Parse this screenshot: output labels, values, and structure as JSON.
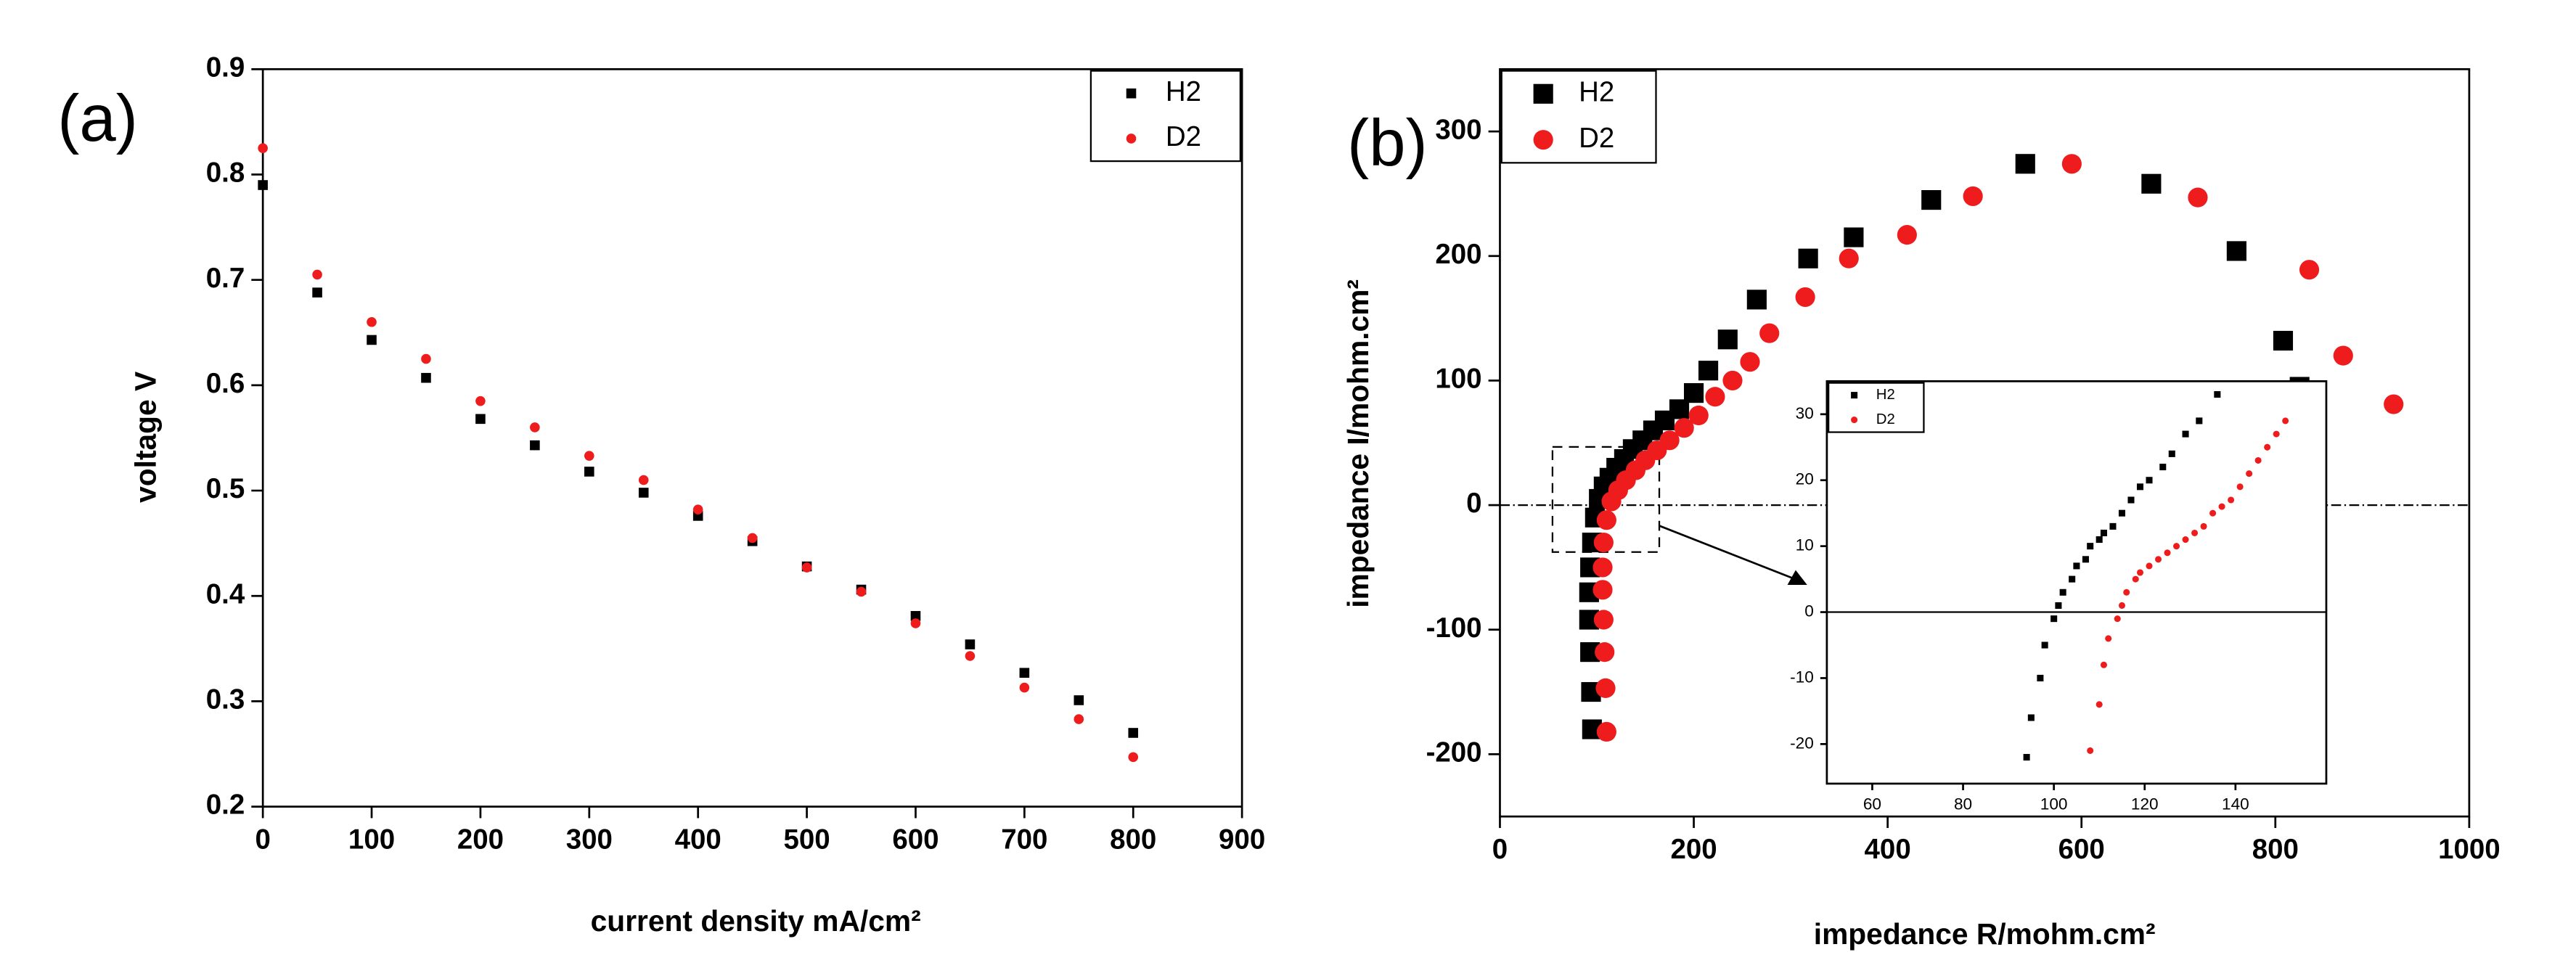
{
  "chart_data": [
    {
      "type": "scatter",
      "label": "(a)",
      "x_label": "current density mA/cm²",
      "y_label": "voltage V",
      "xlim": [
        0,
        900
      ],
      "xticks": [
        0,
        100,
        200,
        300,
        400,
        500,
        600,
        700,
        800,
        900
      ],
      "ylim": [
        0.2,
        0.9
      ],
      "yticks": [
        0.2,
        0.3,
        0.4,
        0.5,
        0.6,
        0.7,
        0.8,
        0.9
      ],
      "legend": "top-right",
      "series": [
        {
          "name": "H2",
          "color": "#000000",
          "marker": "square",
          "x": [
            0,
            50,
            100,
            150,
            200,
            250,
            300,
            350,
            400,
            450,
            500,
            550,
            600,
            650,
            700,
            750,
            800
          ],
          "values": [
            0.79,
            0.688,
            0.643,
            0.607,
            0.568,
            0.543,
            0.518,
            0.498,
            0.476,
            0.452,
            0.428,
            0.406,
            0.381,
            0.354,
            0.327,
            0.301,
            0.27
          ]
        },
        {
          "name": "D2",
          "color": "#ee1c1c",
          "marker": "circle",
          "x": [
            0,
            50,
            100,
            150,
            200,
            250,
            300,
            350,
            400,
            450,
            500,
            550,
            600,
            650,
            700,
            750,
            800
          ],
          "values": [
            0.825,
            0.705,
            0.66,
            0.625,
            0.585,
            0.56,
            0.533,
            0.51,
            0.482,
            0.455,
            0.427,
            0.404,
            0.374,
            0.343,
            0.313,
            0.283,
            0.247
          ]
        }
      ]
    },
    {
      "type": "scatter",
      "label": "(b)",
      "x_label": "impedance R/mohm.cm²",
      "y_label": "impedance I/mohm.cm²",
      "xlim": [
        0,
        1000
      ],
      "xticks": [
        0,
        200,
        400,
        600,
        800,
        1000
      ],
      "ylim": [
        -250,
        350
      ],
      "yticks": [
        -200,
        -100,
        0,
        100,
        200,
        300
      ],
      "legend": "top-left",
      "zero_line": "dashdot",
      "series": [
        {
          "name": "H2",
          "color": "#000000",
          "marker": "square",
          "x": [
            95,
            94,
            93,
            92,
            92,
            93,
            95,
            98,
            102,
            107,
            113,
            120,
            128,
            137,
            147,
            158,
            170,
            185,
            200,
            215,
            235,
            265,
            318,
            365,
            445,
            542,
            672,
            760,
            808,
            825
          ],
          "values": [
            -180,
            -150,
            -118,
            -92,
            -70,
            -50,
            -30,
            -10,
            5,
            15,
            22,
            30,
            37,
            45,
            52,
            60,
            68,
            77,
            90,
            108,
            133,
            165,
            198,
            215,
            245,
            274,
            258,
            204,
            132,
            95
          ]
        },
        {
          "name": "D2",
          "color": "#ee1c1c",
          "marker": "circle",
          "x": [
            110,
            109,
            108,
            107,
            106,
            106,
            107,
            110,
            115,
            122,
            130,
            140,
            150,
            162,
            175,
            190,
            205,
            222,
            240,
            258,
            278,
            315,
            360,
            420,
            488,
            590,
            720,
            835,
            870,
            922
          ],
          "values": [
            -182,
            -147,
            -118,
            -92,
            -68,
            -50,
            -30,
            -12,
            3,
            12,
            20,
            28,
            36,
            44,
            52,
            62,
            72,
            87,
            100,
            115,
            138,
            167,
            198,
            217,
            248,
            274,
            247,
            189,
            120,
            81
          ]
        }
      ]
    },
    {
      "type": "scatter",
      "xlim": [
        50,
        160
      ],
      "xticks": [
        60,
        80,
        100,
        120,
        140
      ],
      "ylim": [
        -26,
        35
      ],
      "yticks": [
        -20,
        -10,
        0,
        10,
        20,
        30
      ],
      "legend": "top-left",
      "zero_line": "solid",
      "series": [
        {
          "name": "H2",
          "color": "#000000",
          "marker": "square",
          "x": [
            94,
            95,
            97,
            98,
            100,
            101,
            102,
            104,
            105,
            107,
            108,
            110,
            111,
            113,
            115,
            117,
            119,
            121,
            124,
            126,
            129,
            132,
            136
          ],
          "values": [
            -22,
            -16,
            -10,
            -5,
            -1,
            1,
            3,
            5,
            7,
            8,
            10,
            11,
            12,
            13,
            15,
            17,
            19,
            20,
            22,
            24,
            27,
            29,
            33
          ]
        },
        {
          "name": "D2",
          "color": "#ee1c1c",
          "marker": "circle",
          "x": [
            108,
            110,
            111,
            112,
            114,
            115,
            116,
            118,
            119,
            121,
            123,
            125,
            127,
            129,
            131,
            133,
            135,
            137,
            139,
            141,
            143,
            145,
            147,
            149,
            151
          ],
          "values": [
            -21,
            -14,
            -8,
            -4,
            -1,
            1,
            3,
            5,
            6,
            7,
            8,
            9,
            10,
            11,
            12,
            13,
            15,
            16,
            17,
            19,
            21,
            23,
            25,
            27,
            29
          ]
        }
      ]
    }
  ]
}
